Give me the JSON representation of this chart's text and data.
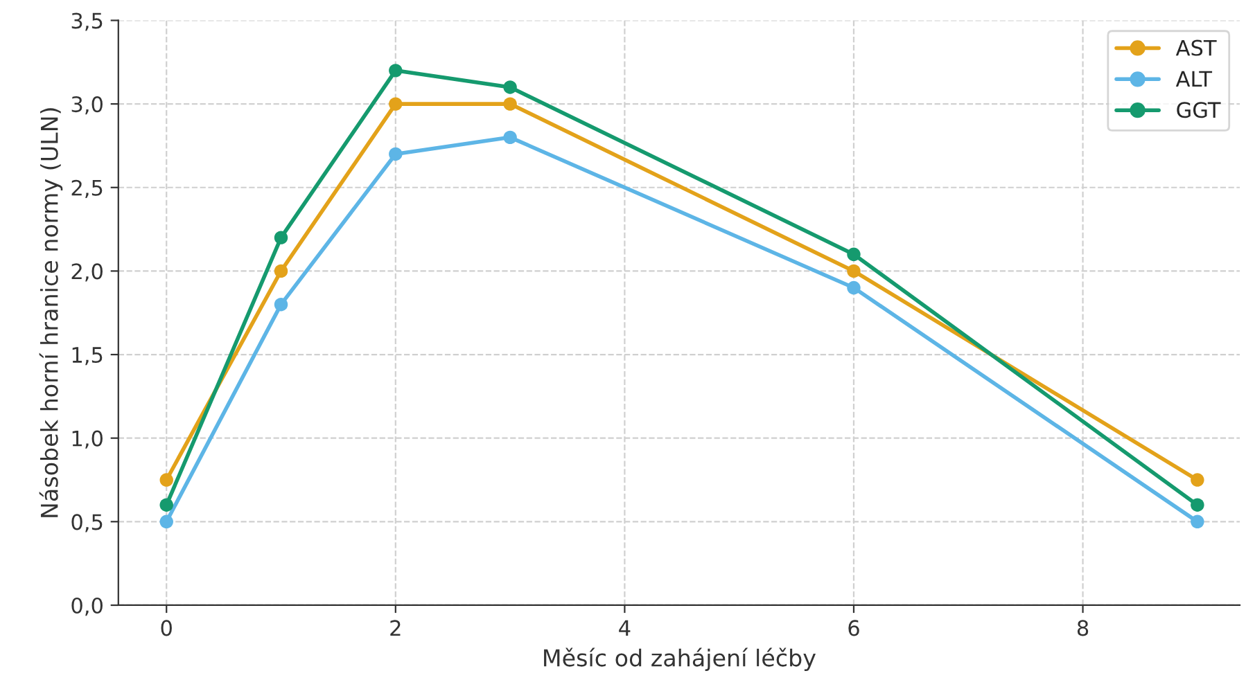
{
  "chart_data": {
    "type": "line",
    "xlabel": "Měsíc od zahájení léčby",
    "ylabel": "Násobek horní hranice normy (ULN)",
    "x": [
      0,
      1,
      2,
      3,
      6,
      9
    ],
    "series": [
      {
        "name": "AST",
        "color": "#e3a21a",
        "values": [
          0.75,
          2.0,
          3.0,
          3.0,
          2.0,
          0.75
        ]
      },
      {
        "name": "ALT",
        "color": "#5db5e6",
        "values": [
          0.5,
          1.8,
          2.7,
          2.8,
          1.9,
          0.5
        ]
      },
      {
        "name": "GGT",
        "color": "#159a6e",
        "values": [
          0.6,
          2.2,
          3.2,
          3.1,
          2.1,
          0.6
        ]
      }
    ],
    "xlim": [
      -0.42,
      9.37
    ],
    "xticks": [
      0,
      2,
      4,
      6,
      8
    ],
    "ylim": [
      0,
      3.5
    ],
    "yticks": [
      {
        "value": 0,
        "label": "0,0"
      },
      {
        "value": 0.5,
        "label": "0,5"
      },
      {
        "value": 1.0,
        "label": "1,0"
      },
      {
        "value": 1.5,
        "label": "1,5"
      },
      {
        "value": 2.0,
        "label": "2,0"
      },
      {
        "value": 2.5,
        "label": "2,5"
      },
      {
        "value": 3.0,
        "label": "3,0"
      },
      {
        "value": 3.5,
        "label": "3,5"
      }
    ],
    "grid": true,
    "legend": "top right",
    "marker": "circle",
    "line_style": "solid"
  }
}
